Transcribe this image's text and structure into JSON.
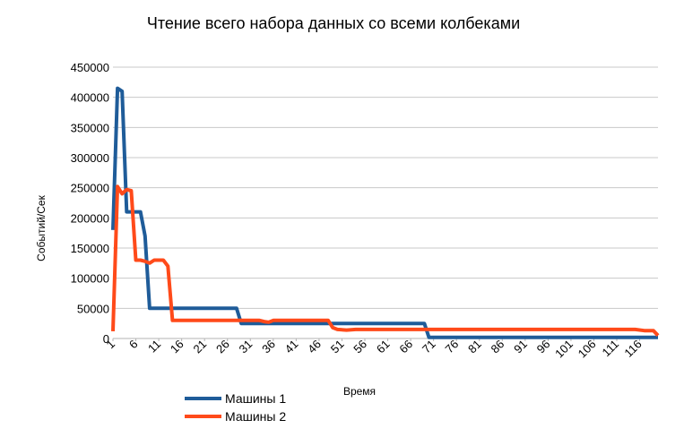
{
  "chart_data": {
    "type": "line",
    "title": "Чтение всего набора данных со всеми колбеками",
    "xlabel": "Время",
    "ylabel": "Событий/Сек",
    "ylim": [
      0,
      450000
    ],
    "yticks": [
      0,
      50000,
      100000,
      150000,
      200000,
      250000,
      300000,
      350000,
      400000,
      450000
    ],
    "xlim": [
      1,
      120
    ],
    "xticks": [
      "1",
      "6",
      "11",
      "16",
      "21",
      "26",
      "31",
      "36",
      "41",
      "46",
      "51",
      "56",
      "61",
      "66",
      "71",
      "76",
      "81",
      "86",
      "91",
      "96",
      "101",
      "106",
      "111",
      "116"
    ],
    "grid": true,
    "legend_position": "bottom-left",
    "series": [
      {
        "name": "Машины 1",
        "color": "#1f5c99",
        "points": [
          [
            1,
            180000
          ],
          [
            2,
            415000
          ],
          [
            3,
            410000
          ],
          [
            4,
            210000
          ],
          [
            5,
            210000
          ],
          [
            6,
            210000
          ],
          [
            7,
            210000
          ],
          [
            8,
            170000
          ],
          [
            9,
            50000
          ],
          [
            28,
            50000
          ],
          [
            29,
            25000
          ],
          [
            69,
            25000
          ],
          [
            70,
            2000
          ],
          [
            120,
            2000
          ]
        ]
      },
      {
        "name": "Машины 2",
        "color": "#ff4a1a",
        "points": [
          [
            1,
            12000
          ],
          [
            2,
            252000
          ],
          [
            3,
            240000
          ],
          [
            4,
            247000
          ],
          [
            5,
            245000
          ],
          [
            6,
            130000
          ],
          [
            7,
            130000
          ],
          [
            8,
            128000
          ],
          [
            9,
            125000
          ],
          [
            10,
            130000
          ],
          [
            11,
            130000
          ],
          [
            12,
            130000
          ],
          [
            13,
            120000
          ],
          [
            14,
            30000
          ],
          [
            33,
            30000
          ],
          [
            34,
            28000
          ],
          [
            35,
            27000
          ],
          [
            36,
            30000
          ],
          [
            48,
            30000
          ],
          [
            49,
            18000
          ],
          [
            50,
            15000
          ],
          [
            52,
            14000
          ],
          [
            54,
            15000
          ],
          [
            115,
            15000
          ],
          [
            117,
            13000
          ],
          [
            119,
            13000
          ],
          [
            120,
            5000
          ]
        ]
      }
    ]
  }
}
